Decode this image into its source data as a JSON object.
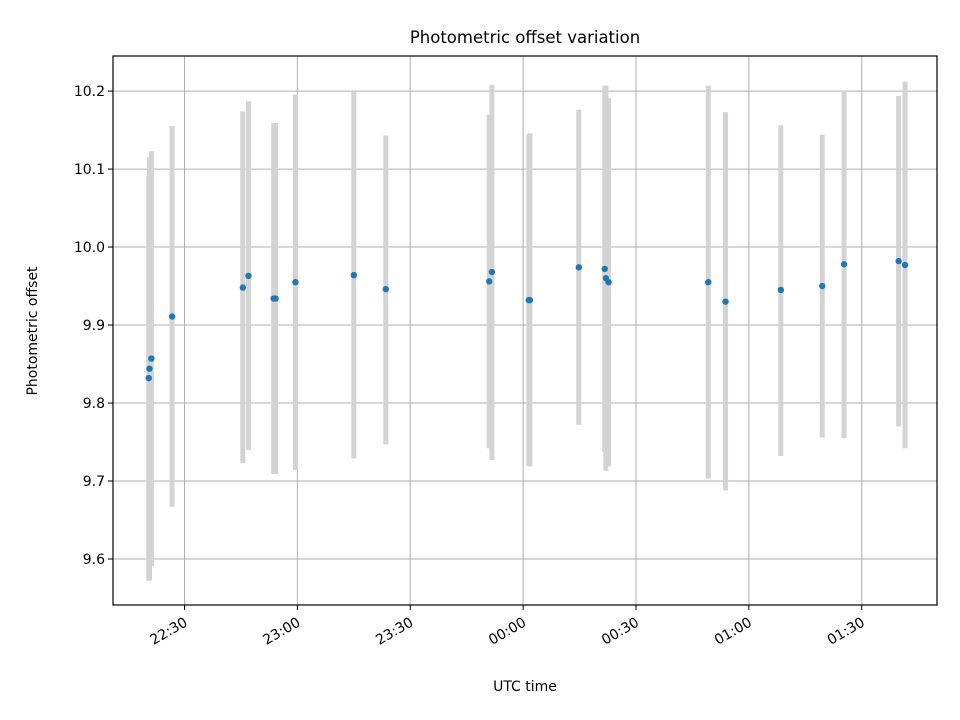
{
  "chart_data": {
    "type": "scatter",
    "title": "Photometric offset variation",
    "xlabel": "UTC time",
    "ylabel": "Photometric offset",
    "x_tick_values_min": [
      -90,
      -60,
      -30,
      0,
      30,
      60,
      90
    ],
    "x_tick_labels": [
      "22:30",
      "23:00",
      "23:30",
      "00:00",
      "00:30",
      "01:00",
      "01:30"
    ],
    "y_ticks": [
      9.6,
      9.7,
      9.8,
      9.9,
      10.0,
      10.1,
      10.2
    ],
    "y_tick_labels": [
      "9.6",
      "9.7",
      "9.8",
      "9.9",
      "10.0",
      "10.1",
      "10.2"
    ],
    "xlim_min": [
      -109,
      110
    ],
    "ylim": [
      9.541,
      10.245
    ],
    "grid": true,
    "x_unit_note": "minutes relative to 00:00 UTC",
    "marker_color": "#1f77b4",
    "errorbar_color": "#d3d3d3",
    "series": [
      {
        "name": "offset",
        "points": [
          {
            "x": -99.5,
            "y": 9.832,
            "low": 9.572,
            "high": 10.092
          },
          {
            "x": -99.3,
            "y": 9.844,
            "low": 9.573,
            "high": 10.115
          },
          {
            "x": -98.8,
            "y": 9.857,
            "low": 9.591,
            "high": 10.123
          },
          {
            "x": -93.3,
            "y": 9.911,
            "low": 9.667,
            "high": 10.155
          },
          {
            "x": -74.5,
            "y": 9.948,
            "low": 9.723,
            "high": 10.174
          },
          {
            "x": -73.0,
            "y": 9.963,
            "low": 9.74,
            "high": 10.187
          },
          {
            "x": -66.3,
            "y": 9.934,
            "low": 9.709,
            "high": 10.159
          },
          {
            "x": -65.8,
            "y": 9.934,
            "low": 9.709,
            "high": 10.159
          },
          {
            "x": -60.5,
            "y": 9.955,
            "low": 9.714,
            "high": 10.196
          },
          {
            "x": -45.0,
            "y": 9.964,
            "low": 9.729,
            "high": 10.199
          },
          {
            "x": -36.5,
            "y": 9.946,
            "low": 9.747,
            "high": 10.143
          },
          {
            "x": -9.0,
            "y": 9.956,
            "low": 9.742,
            "high": 10.17
          },
          {
            "x": -8.3,
            "y": 9.968,
            "low": 9.727,
            "high": 10.208
          },
          {
            "x": 1.5,
            "y": 9.932,
            "low": 9.719,
            "high": 10.144
          },
          {
            "x": 1.8,
            "y": 9.932,
            "low": 9.719,
            "high": 10.146
          },
          {
            "x": 14.8,
            "y": 9.974,
            "low": 9.772,
            "high": 10.176
          },
          {
            "x": 21.7,
            "y": 9.972,
            "low": 9.737,
            "high": 10.207
          },
          {
            "x": 22.0,
            "y": 9.96,
            "low": 9.713,
            "high": 10.207
          },
          {
            "x": 22.7,
            "y": 9.955,
            "low": 9.719,
            "high": 10.191
          },
          {
            "x": 49.2,
            "y": 9.955,
            "low": 9.703,
            "high": 10.207
          },
          {
            "x": 53.8,
            "y": 9.93,
            "low": 9.688,
            "high": 10.173
          },
          {
            "x": 68.5,
            "y": 9.945,
            "low": 9.732,
            "high": 10.156
          },
          {
            "x": 79.5,
            "y": 9.95,
            "low": 9.756,
            "high": 10.144
          },
          {
            "x": 85.3,
            "y": 9.978,
            "low": 9.755,
            "high": 10.2
          },
          {
            "x": 99.8,
            "y": 9.982,
            "low": 9.77,
            "high": 10.194
          },
          {
            "x": 101.5,
            "y": 9.977,
            "low": 9.742,
            "high": 10.212
          }
        ]
      }
    ]
  }
}
